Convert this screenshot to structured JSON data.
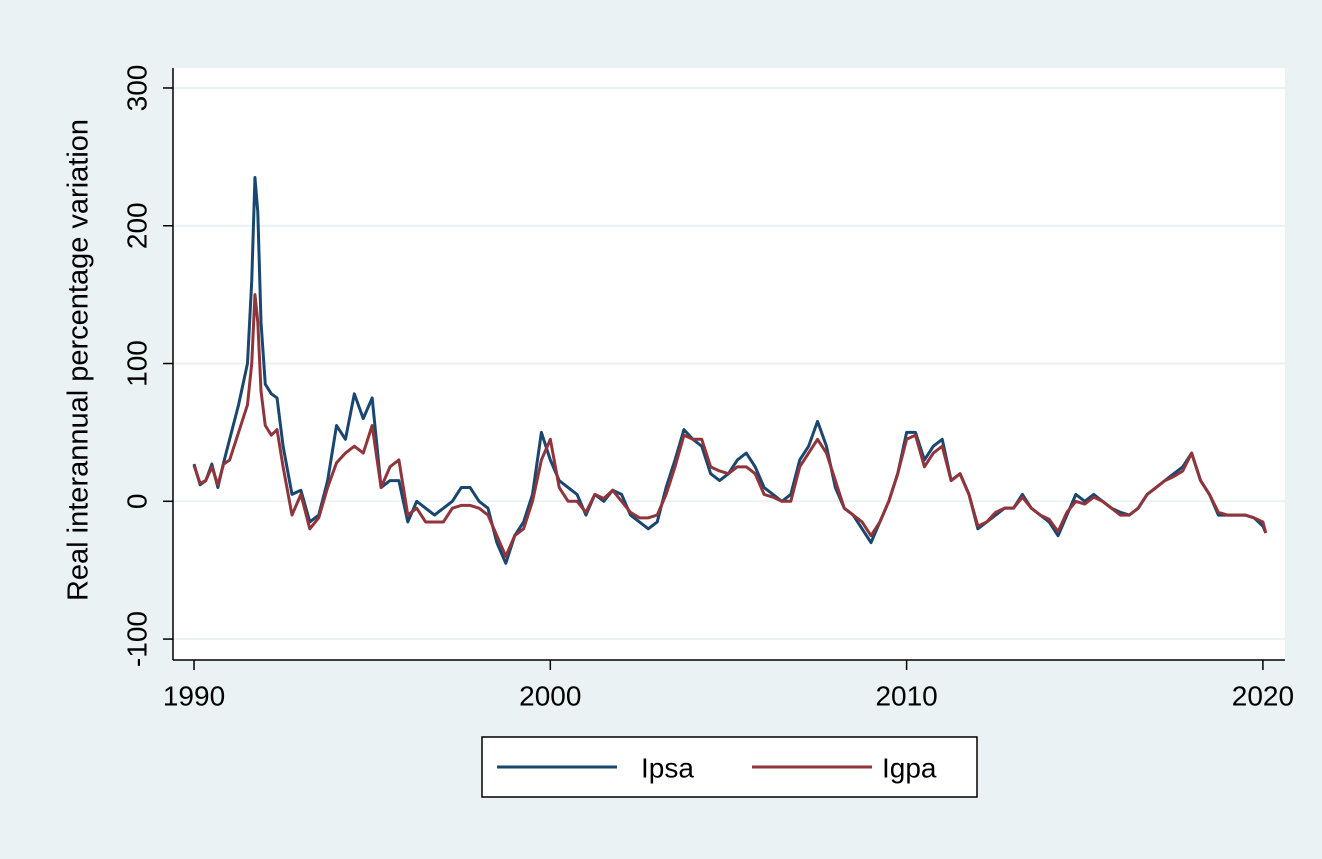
{
  "chart_data": {
    "type": "line",
    "y_label": "Real interannual percentage variation",
    "x": [
      1990,
      1990.17,
      1990.33,
      1990.5,
      1990.67,
      1990.83,
      1991,
      1991.25,
      1991.5,
      1991.62,
      1991.71,
      1991.79,
      1991.88,
      1992,
      1992.17,
      1992.33,
      1992.5,
      1992.75,
      1993,
      1993.25,
      1993.5,
      1993.75,
      1994,
      1994.25,
      1994.5,
      1994.75,
      1995,
      1995.25,
      1995.5,
      1995.75,
      1996,
      1996.25,
      1996.5,
      1996.75,
      1997,
      1997.25,
      1997.5,
      1997.75,
      1998,
      1998.25,
      1998.5,
      1998.75,
      1999,
      1999.25,
      1999.5,
      1999.75,
      2000,
      2000.25,
      2000.5,
      2000.75,
      2001,
      2001.25,
      2001.5,
      2001.75,
      2002,
      2002.25,
      2002.5,
      2002.75,
      2003,
      2003.25,
      2003.5,
      2003.75,
      2004,
      2004.25,
      2004.5,
      2004.75,
      2005,
      2005.25,
      2005.5,
      2005.75,
      2006,
      2006.25,
      2006.5,
      2006.75,
      2007,
      2007.25,
      2007.5,
      2007.75,
      2008,
      2008.25,
      2008.5,
      2008.75,
      2009,
      2009.25,
      2009.5,
      2009.75,
      2010,
      2010.25,
      2010.5,
      2010.75,
      2011,
      2011.25,
      2011.5,
      2011.75,
      2012,
      2012.25,
      2012.5,
      2012.75,
      2013,
      2013.25,
      2013.5,
      2013.75,
      2014,
      2014.25,
      2014.5,
      2014.75,
      2015,
      2015.25,
      2015.5,
      2015.75,
      2016,
      2016.25,
      2016.5,
      2016.75,
      2017,
      2017.25,
      2017.5,
      2017.75,
      2018,
      2018.25,
      2018.5,
      2018.75,
      2019,
      2019.25,
      2019.5,
      2019.75,
      2020,
      2020.08
    ],
    "series": [
      {
        "name": "Ipsa",
        "color": "#1a476f",
        "values": [
          27,
          12,
          15,
          27,
          10,
          28,
          45,
          70,
          100,
          160,
          235,
          210,
          130,
          85,
          78,
          75,
          40,
          5,
          8,
          -15,
          -10,
          15,
          55,
          45,
          78,
          60,
          75,
          10,
          15,
          15,
          -15,
          0,
          -5,
          -10,
          -5,
          0,
          10,
          10,
          0,
          -5,
          -30,
          -45,
          -25,
          -15,
          5,
          50,
          30,
          15,
          10,
          5,
          -10,
          5,
          0,
          8,
          5,
          -10,
          -15,
          -20,
          -15,
          10,
          30,
          52,
          45,
          40,
          20,
          15,
          20,
          30,
          35,
          25,
          10,
          5,
          0,
          5,
          30,
          40,
          58,
          40,
          10,
          -5,
          -10,
          -20,
          -30,
          -15,
          0,
          20,
          50,
          50,
          30,
          40,
          45,
          15,
          20,
          5,
          -20,
          -15,
          -10,
          -5,
          -5,
          5,
          -5,
          -10,
          -15,
          -25,
          -10,
          5,
          0,
          5,
          0,
          -5,
          -8,
          -10,
          -5,
          5,
          10,
          15,
          20,
          25,
          35,
          15,
          5,
          -10,
          -10,
          -10,
          -10,
          -12,
          -18,
          -23
        ]
      },
      {
        "name": "Igpa",
        "color": "#90353b",
        "values": [
          26,
          13,
          15,
          25,
          12,
          27,
          30,
          50,
          70,
          100,
          150,
          130,
          80,
          55,
          48,
          52,
          25,
          -10,
          5,
          -20,
          -12,
          10,
          28,
          35,
          40,
          35,
          55,
          10,
          25,
          30,
          -10,
          -5,
          -15,
          -15,
          -15,
          -5,
          -3,
          -3,
          -5,
          -10,
          -25,
          -40,
          -25,
          -20,
          0,
          30,
          45,
          10,
          0,
          0,
          -8,
          5,
          2,
          8,
          0,
          -8,
          -12,
          -12,
          -10,
          5,
          25,
          48,
          45,
          45,
          25,
          22,
          20,
          25,
          25,
          20,
          5,
          3,
          0,
          0,
          25,
          35,
          45,
          35,
          15,
          -5,
          -10,
          -15,
          -25,
          -15,
          0,
          20,
          45,
          48,
          25,
          35,
          40,
          15,
          20,
          5,
          -18,
          -15,
          -8,
          -5,
          -5,
          3,
          -5,
          -10,
          -13,
          -22,
          -8,
          0,
          -2,
          3,
          0,
          -5,
          -10,
          -10,
          -5,
          5,
          10,
          15,
          18,
          22,
          35,
          15,
          5,
          -8,
          -10,
          -10,
          -10,
          -12,
          -15,
          -23
        ]
      }
    ],
    "xlim": [
      1989.41,
      2020.62
    ],
    "xticks": [
      1990,
      2000,
      2010,
      2020
    ],
    "ylim": [
      -115.2,
      314.5
    ],
    "yticks": [
      -100,
      0,
      100,
      200,
      300
    ],
    "grid": true,
    "legend": "bottom"
  }
}
